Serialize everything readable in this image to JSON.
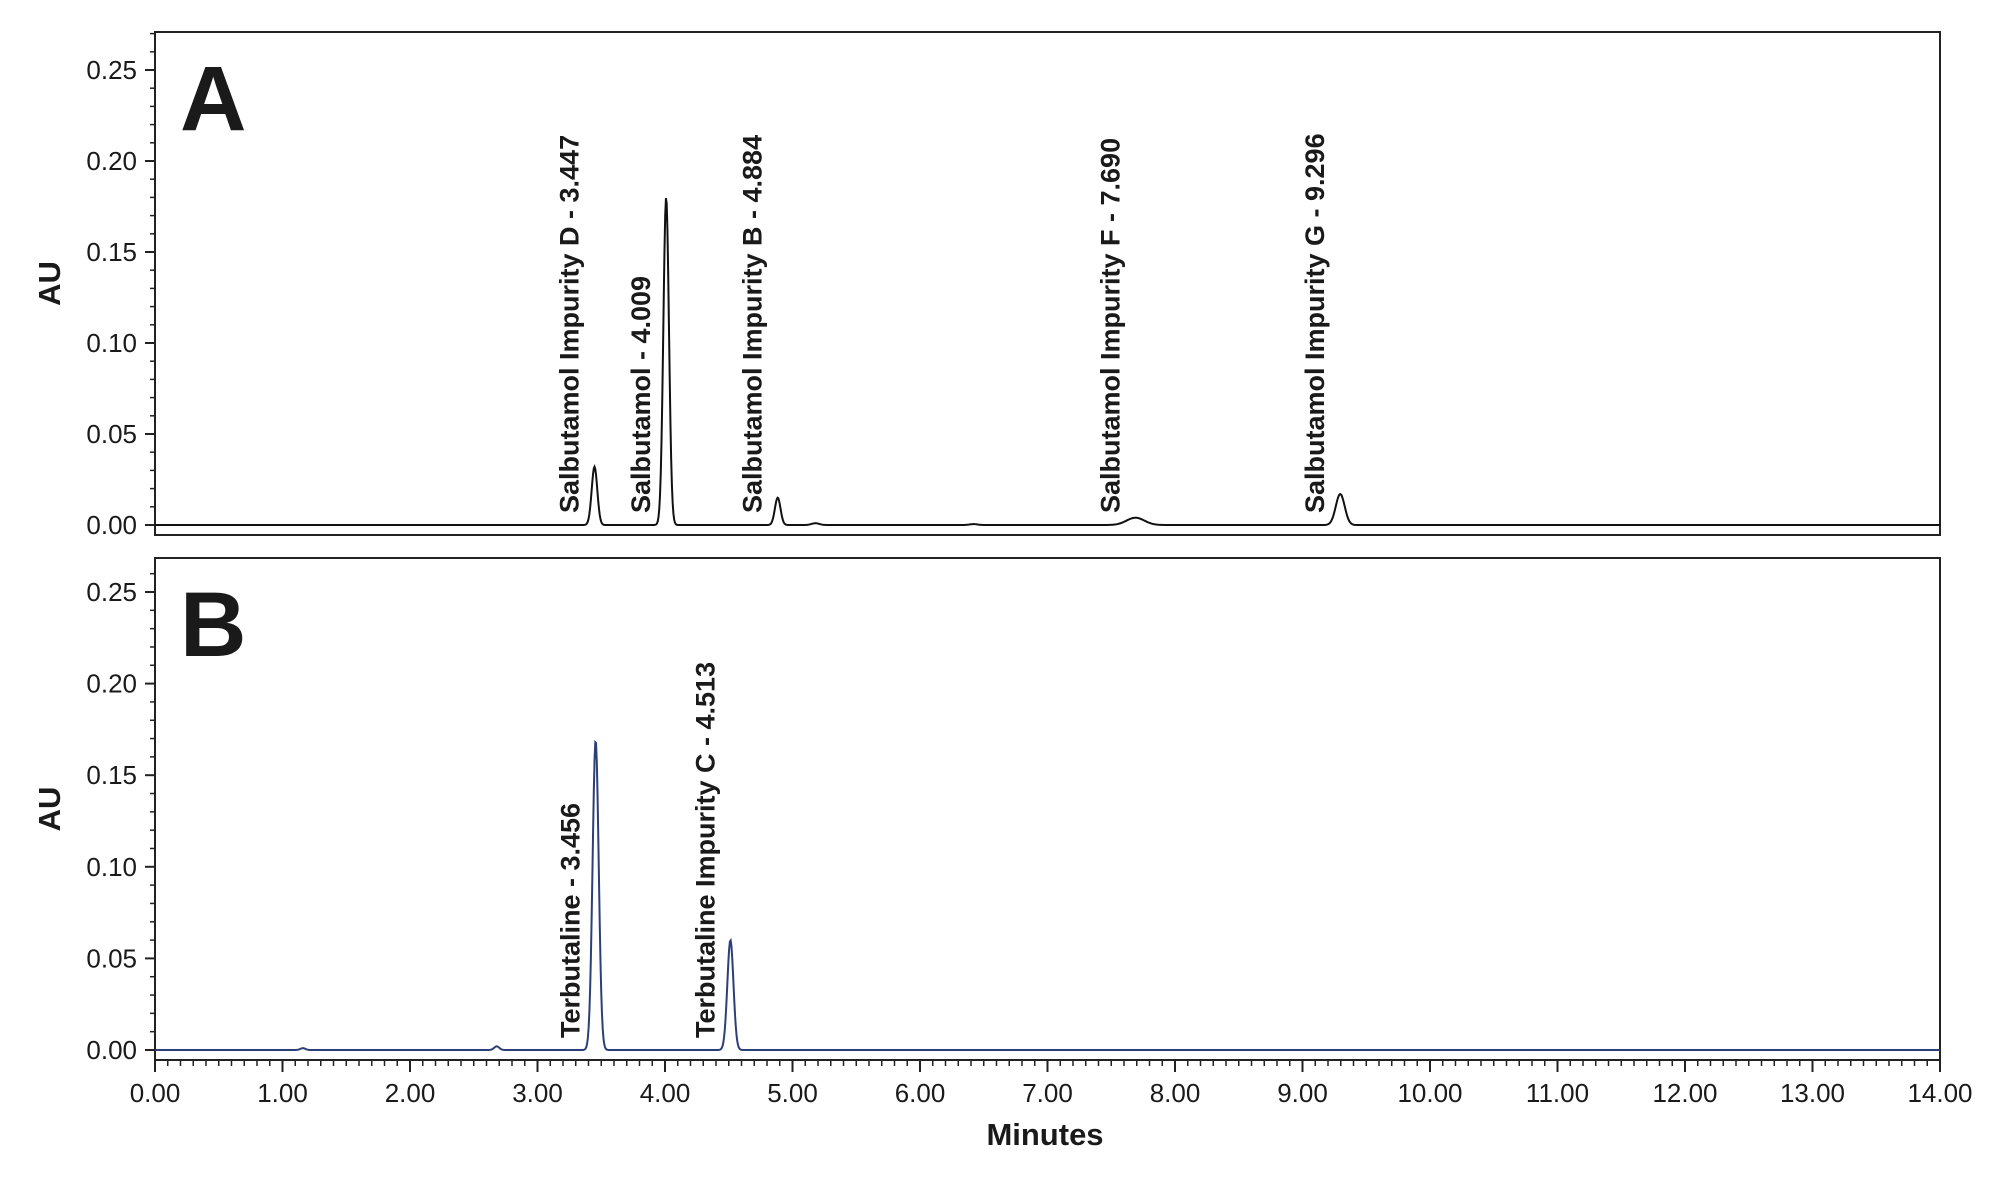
{
  "chart_data": {
    "type": "line",
    "xlabel": "Minutes",
    "xlim": [
      0,
      14
    ],
    "x_ticks": [
      "0.00",
      "1.00",
      "2.00",
      "3.00",
      "4.00",
      "5.00",
      "6.00",
      "7.00",
      "8.00",
      "9.00",
      "10.00",
      "11.00",
      "12.00",
      "13.00",
      "14.00"
    ],
    "panels": [
      {
        "id": "A",
        "label": "A",
        "ylabel": "AU",
        "ylim": [
          0,
          0.27
        ],
        "y_ticks": [
          "0.00",
          "0.05",
          "0.10",
          "0.15",
          "0.20",
          "0.25"
        ],
        "line_color": "#111111",
        "peaks": [
          {
            "name": "Salbutamol Impurity D - 3.447",
            "rt": 3.447,
            "height": 0.032,
            "width": 0.022
          },
          {
            "name": "Salbutamol - 4.009",
            "rt": 4.009,
            "height": 0.18,
            "width": 0.022
          },
          {
            "name": "Salbutamol Impurity B - 4.884",
            "rt": 4.884,
            "height": 0.015,
            "width": 0.022
          },
          {
            "name": "Salbutamol Impurity F - 7.690",
            "rt": 7.69,
            "height": 0.004,
            "width": 0.07
          },
          {
            "name": "Salbutamol Impurity G - 9.296",
            "rt": 9.296,
            "height": 0.017,
            "width": 0.035
          }
        ],
        "minor_peaks": [
          {
            "rt": 5.18,
            "height": 0.001,
            "width": 0.03
          },
          {
            "rt": 6.42,
            "height": 0.0005,
            "width": 0.03
          }
        ]
      },
      {
        "id": "B",
        "label": "B",
        "ylabel": "AU",
        "ylim": [
          0,
          0.27
        ],
        "y_ticks": [
          "0.00",
          "0.05",
          "0.10",
          "0.15",
          "0.20",
          "0.25"
        ],
        "line_color": "#2d3f78",
        "peaks": [
          {
            "name": "Terbutaline - 3.456",
            "rt": 3.456,
            "height": 0.169,
            "width": 0.024
          },
          {
            "name": "Terbutaline Impurity C - 4.513",
            "rt": 4.513,
            "height": 0.06,
            "width": 0.024
          }
        ],
        "minor_peaks": [
          {
            "rt": 1.16,
            "height": 0.001,
            "width": 0.02
          },
          {
            "rt": 2.68,
            "height": 0.002,
            "width": 0.02
          }
        ]
      }
    ]
  }
}
